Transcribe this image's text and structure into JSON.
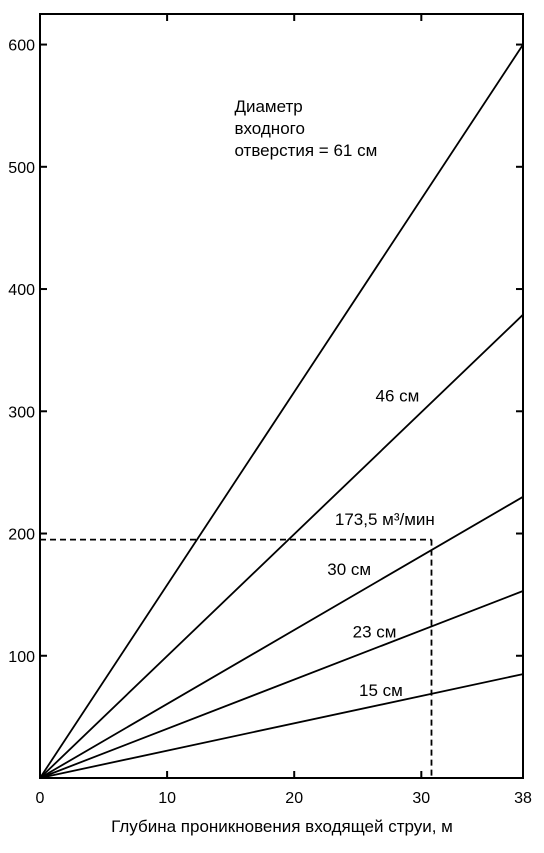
{
  "chart_data": {
    "type": "line",
    "title": "",
    "xlabel": "Глубина проникновения входящей струи, м",
    "ylabel": "",
    "xlim": [
      0,
      38
    ],
    "ylim": [
      0,
      600
    ],
    "xticks": [
      "0",
      "10",
      "20",
      "30",
      "38"
    ],
    "yticks": [
      "100",
      "200",
      "300",
      "400",
      "500",
      "600"
    ],
    "xtick_values": [
      0,
      10,
      20,
      30,
      38
    ],
    "ytick_values": [
      100,
      200,
      300,
      400,
      500,
      600
    ],
    "grid": false,
    "series": [
      {
        "x": [
          0,
          38
        ],
        "values": [
          0,
          600
        ]
      },
      {
        "x": [
          0,
          38
        ],
        "values": [
          0,
          379
        ]
      },
      {
        "x": [
          0,
          38
        ],
        "values": [
          0,
          230
        ]
      },
      {
        "x": [
          0,
          38
        ],
        "values": [
          0,
          153
        ]
      },
      {
        "x": [
          0,
          38
        ],
        "values": [
          0,
          85
        ]
      }
    ],
    "annotations": [
      {
        "lines": [
          "Диаметр",
          "входного",
          "отверстия = 61 см"
        ],
        "x": 15.3,
        "y": 545
      },
      {
        "text": "46 см",
        "x": 26.4,
        "y": 308
      },
      {
        "text": "173,5 м³/мин",
        "x": 23.2,
        "y": 207
      },
      {
        "text": "30 см",
        "x": 22.6,
        "y": 166
      },
      {
        "text": "23 см",
        "x": 24.6,
        "y": 115
      },
      {
        "text": "15 см",
        "x": 25.1,
        "y": 67
      }
    ],
    "reference_lines": {
      "style": "dashed",
      "x": 30.8,
      "y": 195
    }
  }
}
